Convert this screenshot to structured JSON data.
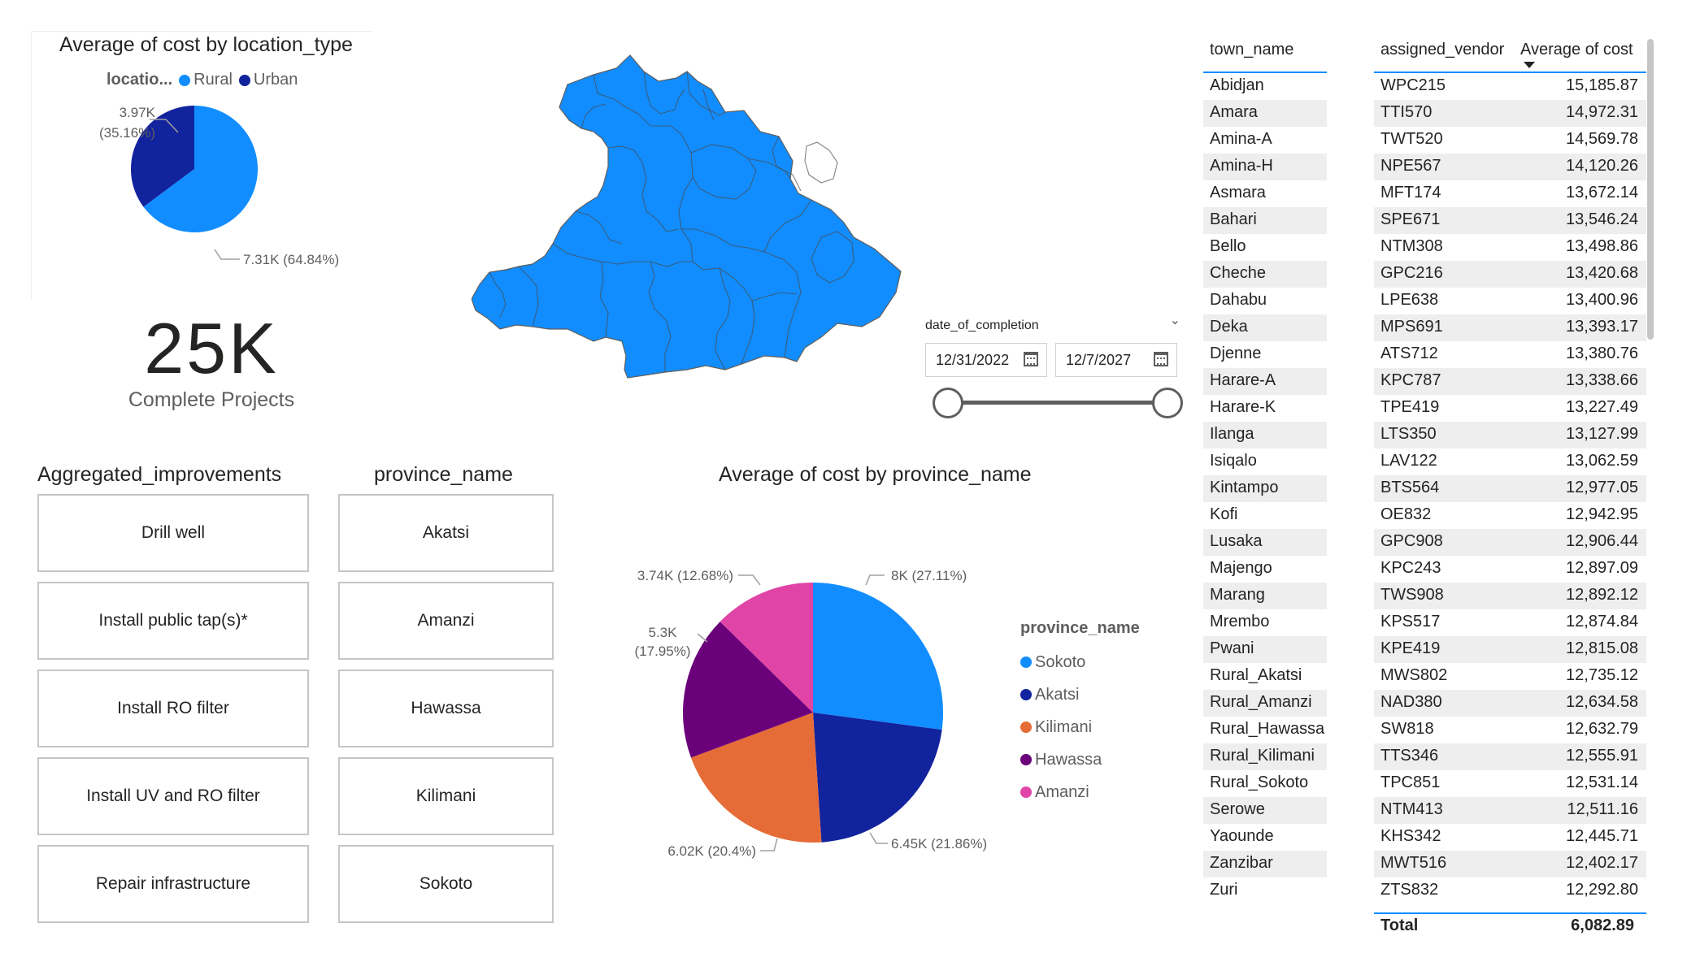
{
  "location_chart": {
    "title": "Average of cost by location_type",
    "legend_title": "locatio...",
    "legend": [
      {
        "name": "Rural",
        "color": "#118DFF"
      },
      {
        "name": "Urban",
        "color": "#12239E"
      }
    ]
  },
  "kpi": {
    "value": "25K",
    "label": "Complete Projects"
  },
  "date_slicer": {
    "field": "date_of_completion",
    "start": "12/31/2022",
    "end": "12/7/2027"
  },
  "improvements_slicer": {
    "title": "Aggregated_improvements",
    "items": [
      "Drill well",
      "Install public tap(s)*",
      "Install RO filter",
      "Install UV and RO filter",
      "Repair infrastructure"
    ]
  },
  "province_slicer": {
    "title": "province_name",
    "items": [
      "Akatsi",
      "Amanzi",
      "Hawassa",
      "Kilimani",
      "Sokoto"
    ]
  },
  "province_chart": {
    "title": "Average of cost by province_name",
    "legend_title": "province_name",
    "legend": [
      {
        "name": "Sokoto",
        "color": "#118DFF"
      },
      {
        "name": "Akatsi",
        "color": "#12239E"
      },
      {
        "name": "Kilimani",
        "color": "#E66C37"
      },
      {
        "name": "Hawassa",
        "color": "#6B007B"
      },
      {
        "name": "Amanzi",
        "color": "#E044A7"
      }
    ]
  },
  "chart_data": [
    {
      "type": "pie",
      "title": "Average of cost by location_type",
      "legend_title": "locatio...",
      "legend_position": "top-left",
      "slices": [
        {
          "name": "Rural",
          "value": 7310,
          "percent": 64.84,
          "label": "7.31K (64.84%)",
          "color": "#118DFF"
        },
        {
          "name": "Urban",
          "value": 3970,
          "percent": 35.16,
          "label_value": "3.97K",
          "label_pct": "(35.16%)",
          "color": "#12239E"
        }
      ]
    },
    {
      "type": "pie",
      "title": "Average of cost by province_name",
      "legend_title": "province_name",
      "legend_position": "right",
      "slices": [
        {
          "name": "Sokoto",
          "value": 8000,
          "percent": 27.11,
          "label": "8K (27.11%)",
          "color": "#118DFF"
        },
        {
          "name": "Akatsi",
          "value": 6450,
          "percent": 21.86,
          "label": "6.45K (21.86%)",
          "color": "#12239E"
        },
        {
          "name": "Kilimani",
          "value": 6020,
          "percent": 20.4,
          "label": "6.02K (20.4%)",
          "color": "#E66C37"
        },
        {
          "name": "Hawassa",
          "value": 5300,
          "percent": 17.95,
          "label_value": "5.3K",
          "label_pct": "(17.95%)",
          "color": "#6B007B"
        },
        {
          "name": "Amanzi",
          "value": 3740,
          "percent": 12.68,
          "label": "3.74K (12.68%)",
          "color": "#E044A7"
        }
      ]
    },
    {
      "type": "table",
      "columns": [
        "town_name",
        "assigned_vendor",
        "Average of cost"
      ],
      "sort_column": "Average of cost",
      "sort_direction": "descending",
      "rows": [
        [
          "Abidjan",
          "WPC215",
          "15,185.87"
        ],
        [
          "Amara",
          "TTI570",
          "14,972.31"
        ],
        [
          "Amina-A",
          "TWT520",
          "14,569.78"
        ],
        [
          "Amina-H",
          "NPE567",
          "14,120.26"
        ],
        [
          "Asmara",
          "MFT174",
          "13,672.14"
        ],
        [
          "Bahari",
          "SPE671",
          "13,546.24"
        ],
        [
          "Bello",
          "NTM308",
          "13,498.86"
        ],
        [
          "Cheche",
          "GPC216",
          "13,420.68"
        ],
        [
          "Dahabu",
          "LPE638",
          "13,400.96"
        ],
        [
          "Deka",
          "MPS691",
          "13,393.17"
        ],
        [
          "Djenne",
          "ATS712",
          "13,380.76"
        ],
        [
          "Harare-A",
          "KPC787",
          "13,338.66"
        ],
        [
          "Harare-K",
          "TPE419",
          "13,227.49"
        ],
        [
          "Ilanga",
          "LTS350",
          "13,127.99"
        ],
        [
          "Isiqalo",
          "LAV122",
          "13,062.59"
        ],
        [
          "Kintampo",
          "BTS564",
          "12,977.05"
        ],
        [
          "Kofi",
          "OE832",
          "12,942.95"
        ],
        [
          "Lusaka",
          "GPC908",
          "12,906.44"
        ],
        [
          "Majengo",
          "KPC243",
          "12,897.09"
        ],
        [
          "Marang",
          "TWS908",
          "12,892.12"
        ],
        [
          "Mrembo",
          "KPS517",
          "12,874.84"
        ],
        [
          "Pwani",
          "KPE419",
          "12,815.08"
        ],
        [
          "Rural_Akatsi",
          "MWS802",
          "12,735.12"
        ],
        [
          "Rural_Amanzi",
          "NAD380",
          "12,634.58"
        ],
        [
          "Rural_Hawassa",
          "SW818",
          "12,632.79"
        ],
        [
          "Rural_Kilimani",
          "TTS346",
          "12,555.91"
        ],
        [
          "Rural_Sokoto",
          "TPC851",
          "12,531.14"
        ],
        [
          "Serowe",
          "NTM413",
          "12,511.16"
        ],
        [
          "Yaounde",
          "KHS342",
          "12,445.71"
        ],
        [
          "Zanzibar",
          "MWT516",
          "12,402.17"
        ],
        [
          "Zuri",
          "ZTS832",
          "12,292.80"
        ]
      ],
      "total_label": "Total",
      "total_value": "6,082.89"
    }
  ],
  "map": {
    "fill_color": "#118DFF",
    "border_color": "#605e5c"
  }
}
